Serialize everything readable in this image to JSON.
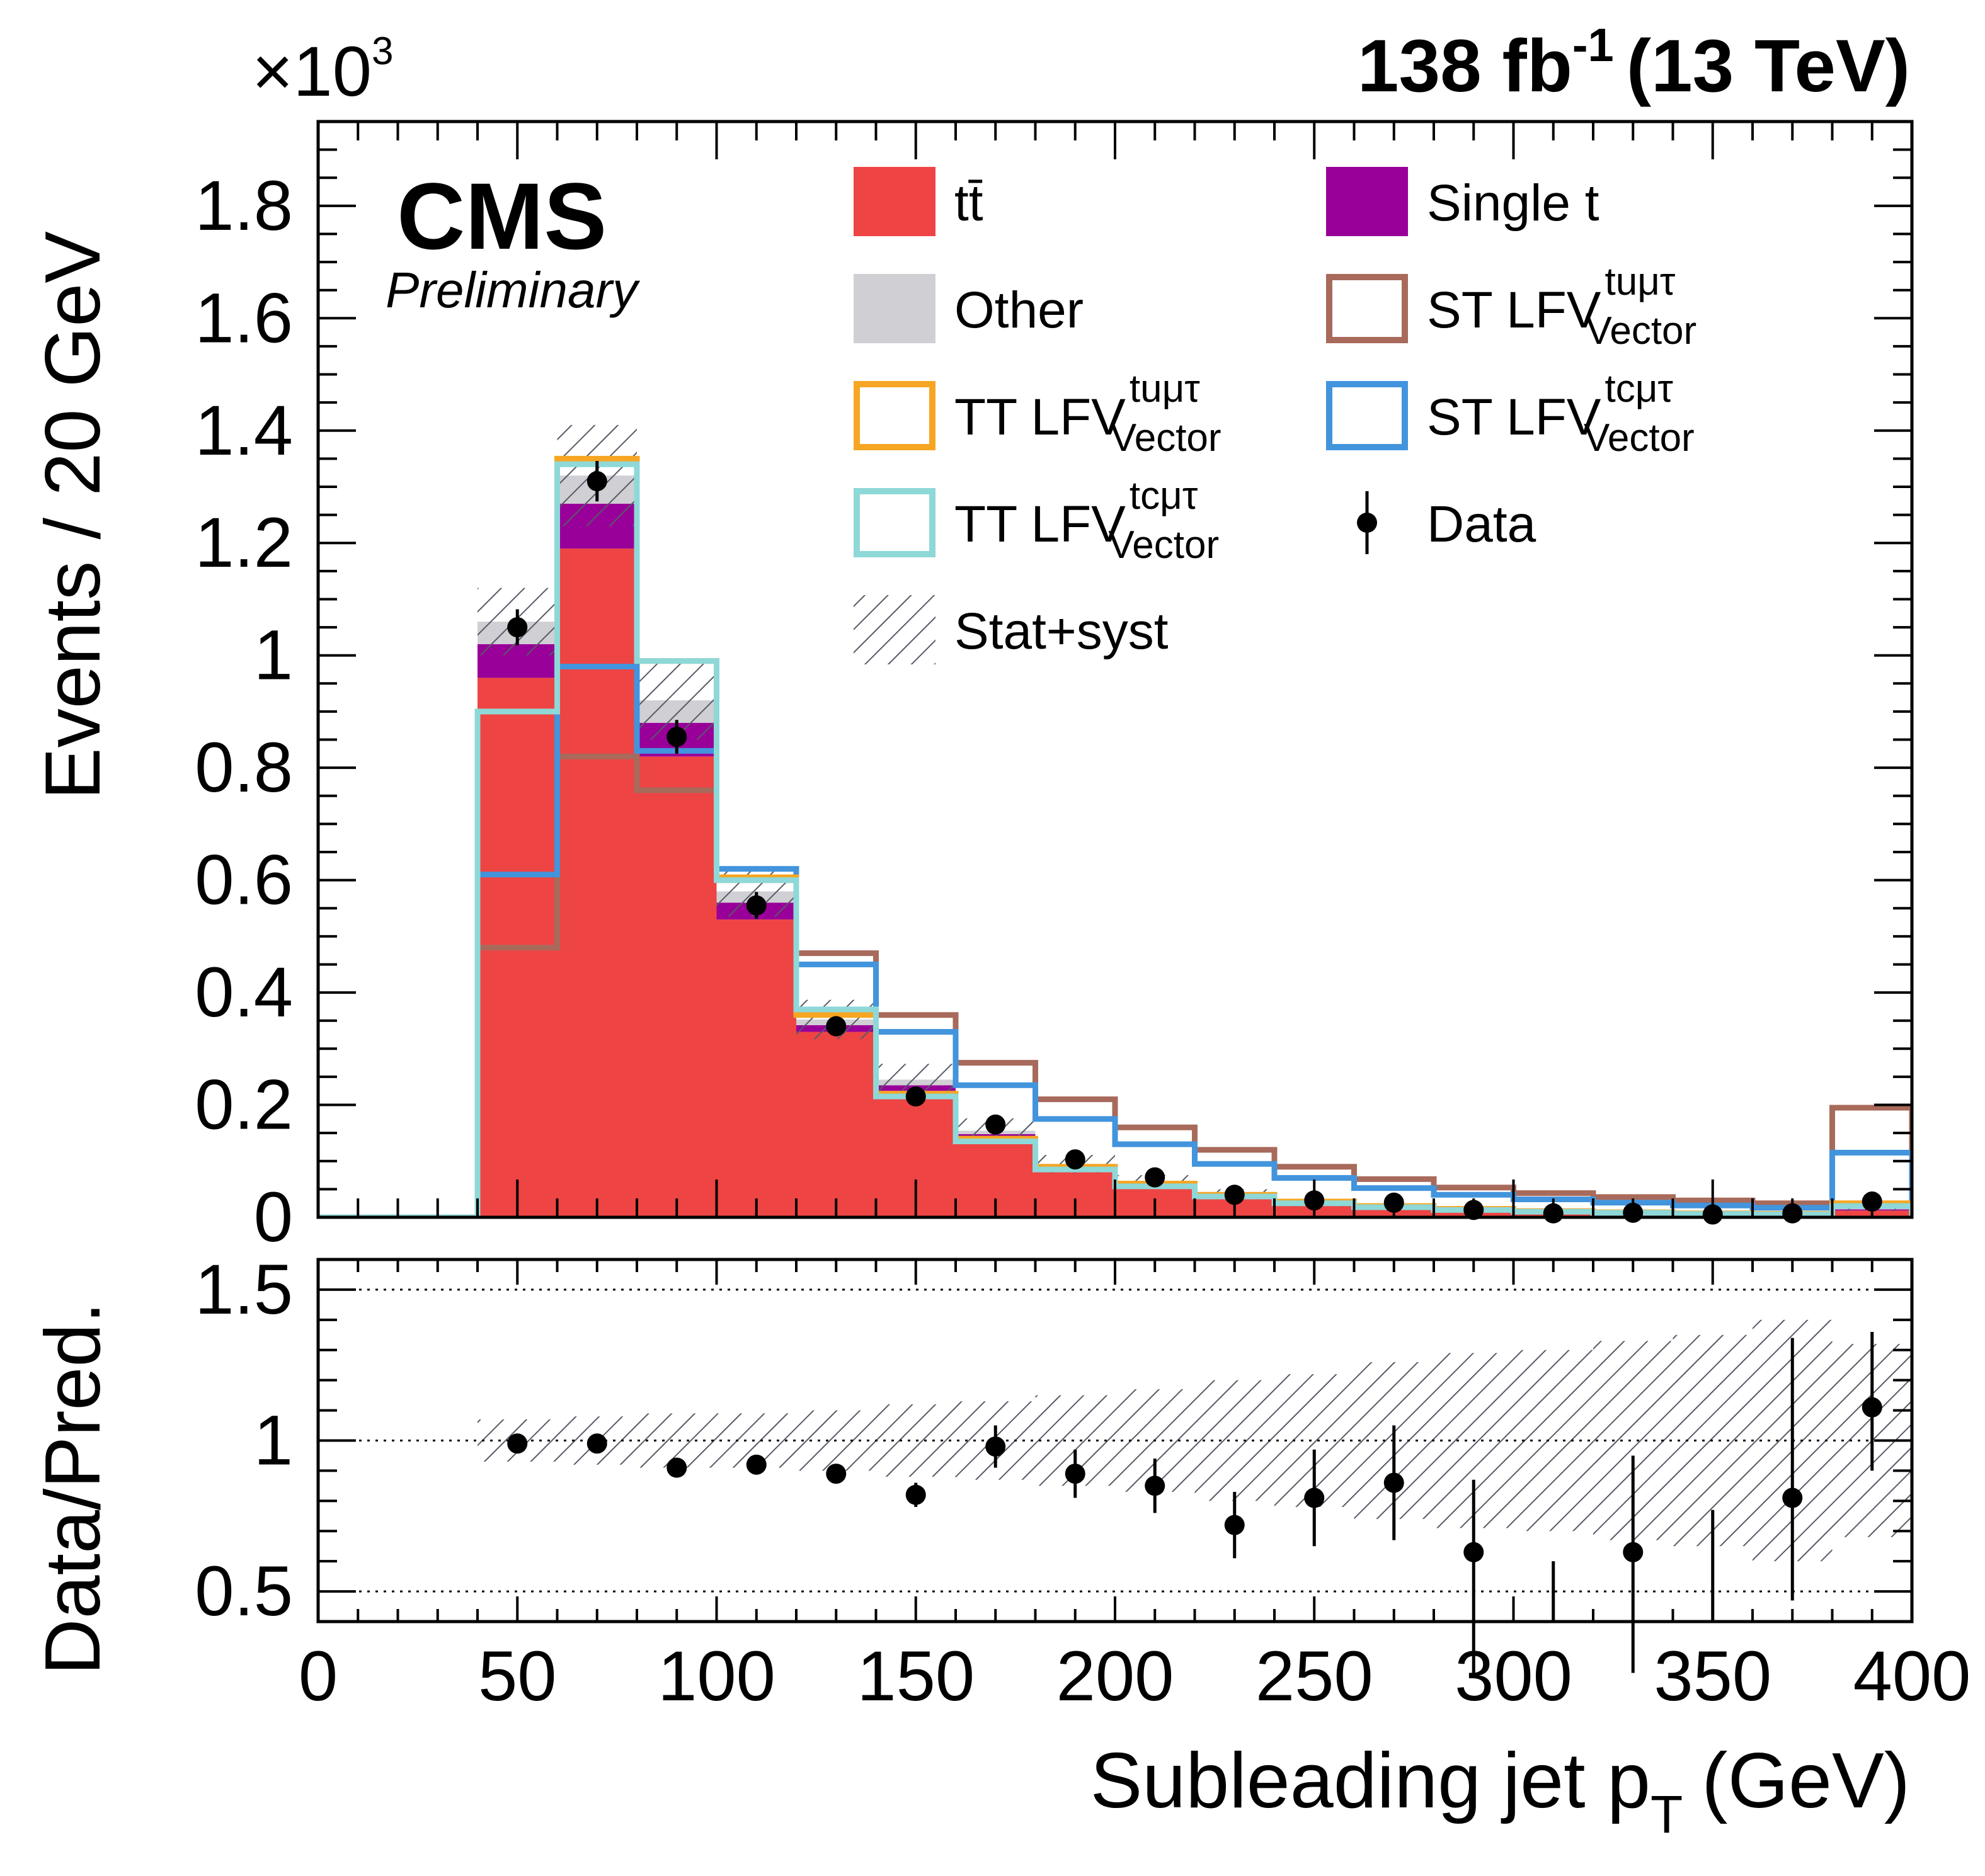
{
  "header": {
    "lumi_value": "138 fb",
    "lumi_exp": "-1",
    "energy": "(13 TeV)",
    "cms": "CMS",
    "preliminary": "Preliminary"
  },
  "chart_data": {
    "type": "bar",
    "style": "stacked-histogram",
    "bin_edges": [
      0,
      20,
      40,
      60,
      80,
      100,
      120,
      140,
      160,
      180,
      200,
      220,
      240,
      260,
      280,
      300,
      320,
      340,
      360,
      380,
      400
    ],
    "xlabel": "Subleading jet p",
    "xlabel_sub": "T",
    "xlabel_unit": "(GeV)",
    "xlim": [
      0,
      400
    ],
    "xticks": [
      "0",
      "50",
      "100",
      "150",
      "200",
      "250",
      "300",
      "350",
      "400"
    ],
    "top": {
      "ylabel": "Events / 20 GeV",
      "exponent_base": "×10",
      "exponent_power": "3",
      "scale": 1000,
      "ylim": [
        0,
        1.95
      ],
      "yticks": [
        "0",
        "0.2",
        "0.4",
        "0.6",
        "0.8",
        "1",
        "1.2",
        "1.4",
        "1.6",
        "1.8"
      ],
      "stack": [
        {
          "name": "tt",
          "color": "#ee4444",
          "values": [
            0,
            0,
            0.96,
            1.19,
            0.82,
            0.53,
            0.33,
            0.225,
            0.14,
            0.085,
            0.055,
            0.035,
            0.022,
            0.015,
            0.01,
            0.007,
            0.005,
            0.004,
            0.003,
            0.012
          ]
        },
        {
          "name": "Single t",
          "color": "#990099",
          "values": [
            0,
            0,
            0.06,
            0.08,
            0.06,
            0.03,
            0.012,
            0.01,
            0.008,
            0.005,
            0.004,
            0.003,
            0.002,
            0.001,
            0.001,
            0.001,
            0.0,
            0.0,
            0.0,
            0.002
          ]
        },
        {
          "name": "Other",
          "color": "#d0cfd4",
          "values": [
            0,
            0,
            0.04,
            0.05,
            0.04,
            0.02,
            0.01,
            0.01,
            0.006,
            0.005,
            0.004,
            0.003,
            0.002,
            0.002,
            0.001,
            0.001,
            0.001,
            0.001,
            0.001,
            0.002
          ]
        }
      ],
      "total_pred": [
        0,
        0,
        1.06,
        1.32,
        0.92,
        0.58,
        0.352,
        0.245,
        0.154,
        0.095,
        0.063,
        0.041,
        0.026,
        0.018,
        0.012,
        0.009,
        0.006,
        0.005,
        0.004,
        0.016
      ],
      "unc_band": [
        0,
        0,
        0.06,
        0.09,
        0.07,
        0.045,
        0.035,
        0.028,
        0.022,
        0.016,
        0.012,
        0.009,
        0.007,
        0.005,
        0.004,
        0.003,
        0.003,
        0.002,
        0.002,
        0.005
      ],
      "signals": [
        {
          "name": "ST LFV tuμτ Vector",
          "color": "#a86a5b",
          "values": [
            0,
            0,
            0.48,
            0.82,
            0.76,
            0.6,
            0.47,
            0.36,
            0.275,
            0.21,
            0.16,
            0.12,
            0.09,
            0.068,
            0.053,
            0.043,
            0.036,
            0.03,
            0.025,
            0.195
          ]
        },
        {
          "name": "ST LFV tcμτ Vector",
          "color": "#4294dc",
          "values": [
            0,
            0,
            0.61,
            0.98,
            0.83,
            0.62,
            0.45,
            0.33,
            0.235,
            0.175,
            0.13,
            0.095,
            0.07,
            0.052,
            0.04,
            0.032,
            0.026,
            0.021,
            0.017,
            0.115
          ]
        },
        {
          "name": "TT LFV tuμτ Vector",
          "color": "#f6a623",
          "values": [
            0,
            0,
            0.9,
            1.35,
            0.99,
            0.605,
            0.36,
            0.22,
            0.14,
            0.09,
            0.06,
            0.04,
            0.028,
            0.02,
            0.015,
            0.011,
            0.009,
            0.007,
            0.006,
            0.025
          ]
        },
        {
          "name": "TT LFV tcμτ Vector",
          "color": "#8ed8d8",
          "values": [
            0,
            0,
            0.9,
            1.34,
            0.99,
            0.6,
            0.37,
            0.215,
            0.135,
            0.085,
            0.055,
            0.037,
            0.025,
            0.018,
            0.013,
            0.01,
            0.008,
            0.006,
            0.005,
            0.02
          ]
        }
      ],
      "data": {
        "name": "Data",
        "x": [
          50,
          70,
          90,
          110,
          130,
          150,
          170,
          190,
          210,
          230,
          250,
          270,
          290,
          310,
          330,
          350,
          370,
          390
        ],
        "y": [
          1.05,
          1.31,
          0.855,
          0.555,
          0.34,
          0.215,
          0.165,
          0.103,
          0.071,
          0.04,
          0.03,
          0.026,
          0.013,
          0.007,
          0.008,
          0.005,
          0.007,
          0.028
        ],
        "err": [
          0.032,
          0.036,
          0.03,
          0.024,
          0.018,
          0.015,
          0.013,
          0.01,
          0.008,
          0.006,
          0.005,
          0.005,
          0.004,
          0.003,
          0.003,
          0.002,
          0.003,
          0.005
        ]
      }
    },
    "ratio": {
      "ylabel": "Data/Pred.",
      "ylim": [
        0.4,
        1.6
      ],
      "yticks": [
        "0.5",
        "1",
        "1.5"
      ],
      "reference_lines": [
        0.5,
        1.0,
        1.5
      ],
      "band_half_width": [
        0,
        0,
        0.07,
        0.08,
        0.09,
        0.09,
        0.1,
        0.12,
        0.13,
        0.15,
        0.17,
        0.2,
        0.22,
        0.26,
        0.29,
        0.3,
        0.33,
        0.35,
        0.4,
        0.32
      ],
      "data": {
        "x": [
          50,
          70,
          90,
          110,
          130,
          150,
          170,
          190,
          210,
          230,
          250,
          270,
          290,
          310,
          330,
          350,
          370,
          390
        ],
        "y": [
          0.99,
          0.99,
          0.91,
          0.92,
          0.89,
          0.82,
          0.98,
          0.89,
          0.85,
          0.72,
          0.81,
          0.86,
          0.63,
          null,
          0.63,
          null,
          0.81,
          1.11
        ],
        "err_lo": [
          0.02,
          0.015,
          0.02,
          0.025,
          0.03,
          0.04,
          0.07,
          0.08,
          0.09,
          0.11,
          0.16,
          0.19,
          0.4,
          0,
          0.4,
          0,
          0.34,
          0.21
        ],
        "err_hi": [
          0.02,
          0.015,
          0.02,
          0.025,
          0.03,
          0.04,
          0.07,
          0.08,
          0.09,
          0.11,
          0.16,
          0.19,
          0.24,
          0,
          0.32,
          0,
          0.53,
          0.25
        ],
        "upper_only": [
          {
            "x": 310,
            "hi": 0.6
          },
          {
            "x": 350,
            "hi": 0.77
          }
        ]
      }
    },
    "legend": {
      "placement": "top-right",
      "entries": [
        {
          "label": "tt̄",
          "main": "tt̄",
          "sup": "",
          "sub": "",
          "kind": "fill",
          "color": "#ee4444"
        },
        {
          "label": "Single t",
          "main": "Single t",
          "sup": "",
          "sub": "",
          "kind": "fill",
          "color": "#990099"
        },
        {
          "label": "Other",
          "main": "Other",
          "sup": "",
          "sub": "",
          "kind": "fill",
          "color": "#d0cfd4"
        },
        {
          "label": "ST LFV",
          "main": "ST LFV",
          "sup": "tuμτ",
          "sub": "Vector",
          "kind": "line",
          "color": "#a86a5b"
        },
        {
          "label": "TT LFV",
          "main": "TT LFV",
          "sup": "tuμτ",
          "sub": "Vector",
          "kind": "line",
          "color": "#f6a623"
        },
        {
          "label": "ST LFV",
          "main": "ST LFV",
          "sup": "tcμτ",
          "sub": "Vector",
          "kind": "line",
          "color": "#4294dc"
        },
        {
          "label": "TT LFV",
          "main": "TT LFV",
          "sup": "tcμτ",
          "sub": "Vector",
          "kind": "line",
          "color": "#8ed8d8"
        },
        {
          "label": "Data",
          "main": "Data",
          "sup": "",
          "sub": "",
          "kind": "marker",
          "color": "#000000"
        },
        {
          "label": "Stat+syst",
          "main": "Stat+syst",
          "sup": "",
          "sub": "",
          "kind": "hatch",
          "color": "#555b66"
        }
      ]
    }
  }
}
